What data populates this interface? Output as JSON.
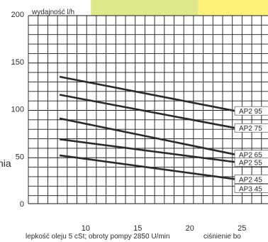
{
  "chart_data": {
    "type": "line",
    "ylabel": "wydajność l/h",
    "xlabel": "lepkość oleju 5 cSt; obroty pompy 2850 U/min",
    "side_text_left": "nia",
    "side_text_right": "ciśnienie bo",
    "x_ticks": [
      10,
      15,
      20,
      25
    ],
    "y_ticks": [
      0,
      50,
      100,
      150,
      200
    ],
    "xlim": [
      4.5,
      27.5
    ],
    "ylim": [
      0,
      200
    ],
    "grid": true,
    "bands": [
      {
        "from": 10.5,
        "to": 20.8,
        "color": "#dfe98c"
      },
      {
        "from": 20.8,
        "to": 27.5,
        "color": "#fdf27a"
      }
    ],
    "series": [
      {
        "name": "AP2 95",
        "x": [
          7.5,
          21.5
        ],
        "y": [
          134,
          98
        ]
      },
      {
        "name": "AP2 75",
        "x": [
          7.5,
          21.5
        ],
        "y": [
          115,
          80
        ]
      },
      {
        "name": "AP2 65",
        "x": [
          7.5,
          21.5
        ],
        "y": [
          90,
          52
        ]
      },
      {
        "name": "AP2 55",
        "x": [
          7.5,
          21.5
        ],
        "y": [
          68,
          44
        ]
      },
      {
        "name": "AP2 45",
        "x": [
          7.5,
          21.5
        ],
        "y": [
          51,
          26
        ]
      }
    ],
    "extra_labels": [
      "AP3 45"
    ],
    "colors": {
      "line": "#2a2a2a",
      "grid": "#1a1a1a",
      "band_green": "#dfe98c",
      "band_yellow": "#fdf27a"
    }
  }
}
